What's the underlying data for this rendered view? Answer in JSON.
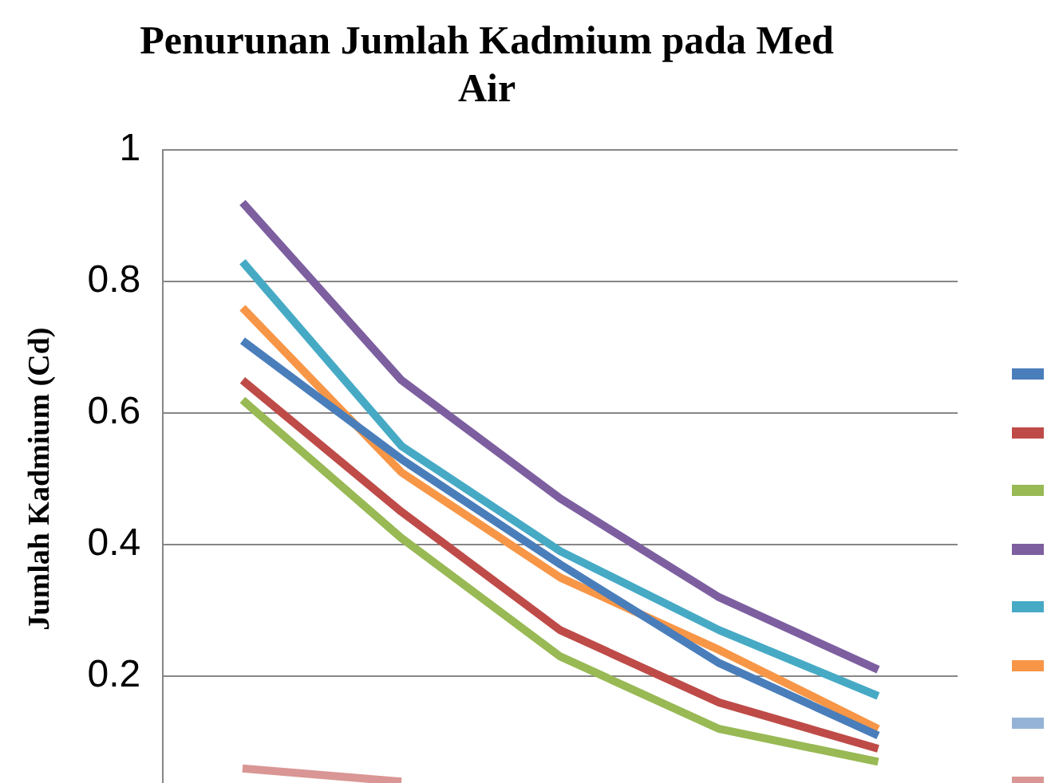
{
  "chart_data": {
    "type": "line",
    "title": "Penurunan Jumlah Kadmium pada Med\nAir",
    "ylabel": "Jumlah Kadmium (Cd)",
    "categories": [
      null,
      null,
      null,
      null,
      null
    ],
    "series": [
      {
        "color": "#4a7ebb",
        "values": [
          0.71,
          0.53,
          0.37,
          0.22,
          0.11
        ]
      },
      {
        "color": "#be4b48",
        "values": [
          0.65,
          0.45,
          0.27,
          0.16,
          0.09
        ]
      },
      {
        "color": "#98b954",
        "values": [
          0.62,
          0.41,
          0.23,
          0.12,
          0.07
        ]
      },
      {
        "color": "#7d5fa0",
        "values": [
          0.92,
          0.65,
          0.47,
          0.32,
          0.21
        ]
      },
      {
        "color": "#46aac5",
        "values": [
          0.83,
          0.55,
          0.39,
          0.27,
          0.17
        ]
      },
      {
        "color": "#f79646",
        "values": [
          0.76,
          0.51,
          0.35,
          0.24,
          0.12
        ]
      },
      {
        "color": "#95b3d7",
        "values": [
          null,
          null,
          null,
          null,
          null
        ]
      },
      {
        "color": "#d99694",
        "values": [
          0.06,
          0.04,
          null,
          null,
          null
        ]
      }
    ],
    "ylim": [
      0,
      1
    ],
    "yticks": [
      0.2,
      0.4,
      0.6,
      0.8,
      1
    ],
    "grid": "y",
    "marker": "none",
    "line_style": "solid"
  }
}
